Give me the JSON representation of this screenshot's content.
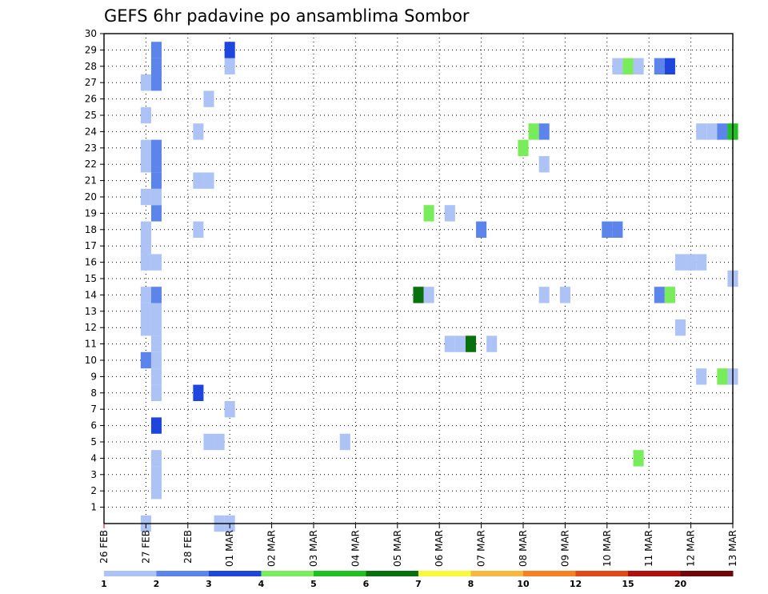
{
  "chart_data": {
    "type": "heatmap",
    "title": "GEFS 6hr padavine po ansamblima Sombor",
    "x_tick_labels": [
      "26 FEB",
      "27 FEB",
      "28 FEB",
      "01 MAR",
      "02 MAR",
      "03 MAR",
      "04 MAR",
      "05 MAR",
      "06 MAR",
      "07 MAR",
      "08 MAR",
      "09 MAR",
      "10 MAR",
      "11 MAR",
      "12 MAR",
      "13 MAR"
    ],
    "y_tick_labels": [
      "1",
      "2",
      "3",
      "4",
      "5",
      "6",
      "7",
      "8",
      "9",
      "10",
      "11",
      "12",
      "13",
      "14",
      "15",
      "16",
      "17",
      "18",
      "19",
      "20",
      "21",
      "22",
      "23",
      "24",
      "25",
      "26",
      "27",
      "28",
      "29",
      "30"
    ],
    "y_range": [
      0,
      30
    ],
    "x_range_days": [
      0,
      15
    ],
    "grid": true,
    "legend": {
      "placement": "bottom",
      "labels": [
        "1",
        "2",
        "3",
        "4",
        "5",
        "6",
        "7",
        "8",
        "10",
        "12",
        "15",
        "20"
      ],
      "colors": [
        "#adc3f5",
        "#5c85ec",
        "#1f46dc",
        "#78ec5a",
        "#20c020",
        "#08700c",
        "#f8f83c",
        "#f8b840",
        "#f88020",
        "#e04818",
        "#b01010",
        "#700808"
      ]
    },
    "cells": [
      {
        "x": 1.0,
        "y": 0,
        "l": 0
      },
      {
        "x": 1.25,
        "y": 2,
        "l": 0
      },
      {
        "x": 1.25,
        "y": 3,
        "l": 0
      },
      {
        "x": 1.25,
        "y": 4,
        "l": 0
      },
      {
        "x": 1.25,
        "y": 6,
        "l": 2
      },
      {
        "x": 1.25,
        "y": 8,
        "l": 0
      },
      {
        "x": 1.25,
        "y": 9,
        "l": 0
      },
      {
        "x": 1.25,
        "y": 10,
        "l": 0
      },
      {
        "x": 1.0,
        "y": 10,
        "l": 1
      },
      {
        "x": 1.25,
        "y": 11,
        "l": 0
      },
      {
        "x": 1.0,
        "y": 12,
        "l": 0
      },
      {
        "x": 1.25,
        "y": 12,
        "l": 0
      },
      {
        "x": 1.0,
        "y": 13,
        "l": 0
      },
      {
        "x": 1.25,
        "y": 13,
        "l": 0
      },
      {
        "x": 1.0,
        "y": 14,
        "l": 0
      },
      {
        "x": 1.25,
        "y": 14,
        "l": 1
      },
      {
        "x": 1.0,
        "y": 16,
        "l": 0
      },
      {
        "x": 1.25,
        "y": 16,
        "l": 0
      },
      {
        "x": 1.0,
        "y": 17,
        "l": 0
      },
      {
        "x": 1.0,
        "y": 18,
        "l": 0
      },
      {
        "x": 1.25,
        "y": 19,
        "l": 1
      },
      {
        "x": 1.0,
        "y": 20,
        "l": 0
      },
      {
        "x": 1.25,
        "y": 20,
        "l": 0
      },
      {
        "x": 1.25,
        "y": 21,
        "l": 1
      },
      {
        "x": 1.0,
        "y": 22,
        "l": 0
      },
      {
        "x": 1.25,
        "y": 22,
        "l": 1
      },
      {
        "x": 1.0,
        "y": 23,
        "l": 0
      },
      {
        "x": 1.25,
        "y": 23,
        "l": 1
      },
      {
        "x": 1.0,
        "y": 25,
        "l": 0
      },
      {
        "x": 1.0,
        "y": 27,
        "l": 0
      },
      {
        "x": 1.25,
        "y": 27,
        "l": 1
      },
      {
        "x": 1.25,
        "y": 28,
        "l": 1
      },
      {
        "x": 1.25,
        "y": 29,
        "l": 1
      },
      {
        "x": 2.25,
        "y": 8,
        "l": 2
      },
      {
        "x": 2.25,
        "y": 18,
        "l": 0
      },
      {
        "x": 2.25,
        "y": 21,
        "l": 0
      },
      {
        "x": 2.5,
        "y": 21,
        "l": 0
      },
      {
        "x": 2.25,
        "y": 24,
        "l": 0
      },
      {
        "x": 2.5,
        "y": 5,
        "l": 0
      },
      {
        "x": 2.75,
        "y": 5,
        "l": 0
      },
      {
        "x": 2.5,
        "y": 26,
        "l": 0
      },
      {
        "x": 2.75,
        "y": 0,
        "l": 0
      },
      {
        "x": 3.0,
        "y": 0,
        "l": 0
      },
      {
        "x": 3.0,
        "y": 7,
        "l": 0
      },
      {
        "x": 3.0,
        "y": 28,
        "l": 0
      },
      {
        "x": 3.0,
        "y": 29,
        "l": 2
      },
      {
        "x": 5.75,
        "y": 5,
        "l": 0
      },
      {
        "x": 7.5,
        "y": 14,
        "l": 5
      },
      {
        "x": 7.75,
        "y": 14,
        "l": 0
      },
      {
        "x": 7.75,
        "y": 19,
        "l": 3
      },
      {
        "x": 8.25,
        "y": 19,
        "l": 0
      },
      {
        "x": 8.25,
        "y": 11,
        "l": 0
      },
      {
        "x": 8.5,
        "y": 11,
        "l": 0
      },
      {
        "x": 8.75,
        "y": 11,
        "l": 5
      },
      {
        "x": 9.25,
        "y": 11,
        "l": 0
      },
      {
        "x": 9.0,
        "y": 18,
        "l": 1
      },
      {
        "x": 10.0,
        "y": 23,
        "l": 3
      },
      {
        "x": 10.25,
        "y": 24,
        "l": 3
      },
      {
        "x": 10.5,
        "y": 24,
        "l": 1
      },
      {
        "x": 10.5,
        "y": 22,
        "l": 0
      },
      {
        "x": 10.5,
        "y": 14,
        "l": 0
      },
      {
        "x": 11.0,
        "y": 14,
        "l": 0
      },
      {
        "x": 12.0,
        "y": 18,
        "l": 1
      },
      {
        "x": 12.25,
        "y": 18,
        "l": 1
      },
      {
        "x": 12.25,
        "y": 28,
        "l": 0
      },
      {
        "x": 12.5,
        "y": 28,
        "l": 3
      },
      {
        "x": 12.75,
        "y": 28,
        "l": 0
      },
      {
        "x": 12.75,
        "y": 4,
        "l": 3
      },
      {
        "x": 13.25,
        "y": 28,
        "l": 1
      },
      {
        "x": 13.5,
        "y": 28,
        "l": 2
      },
      {
        "x": 13.25,
        "y": 14,
        "l": 1
      },
      {
        "x": 13.5,
        "y": 14,
        "l": 3
      },
      {
        "x": 13.75,
        "y": 16,
        "l": 0
      },
      {
        "x": 14.0,
        "y": 16,
        "l": 0
      },
      {
        "x": 14.25,
        "y": 16,
        "l": 0
      },
      {
        "x": 13.75,
        "y": 12,
        "l": 0
      },
      {
        "x": 14.25,
        "y": 24,
        "l": 0
      },
      {
        "x": 14.5,
        "y": 24,
        "l": 0
      },
      {
        "x": 14.75,
        "y": 24,
        "l": 1
      },
      {
        "x": 15.0,
        "y": 24,
        "l": 4
      },
      {
        "x": 14.25,
        "y": 9,
        "l": 0
      },
      {
        "x": 14.75,
        "y": 9,
        "l": 3
      },
      {
        "x": 15.0,
        "y": 9,
        "l": 0
      },
      {
        "x": 15.0,
        "y": 15,
        "l": 0
      }
    ]
  }
}
